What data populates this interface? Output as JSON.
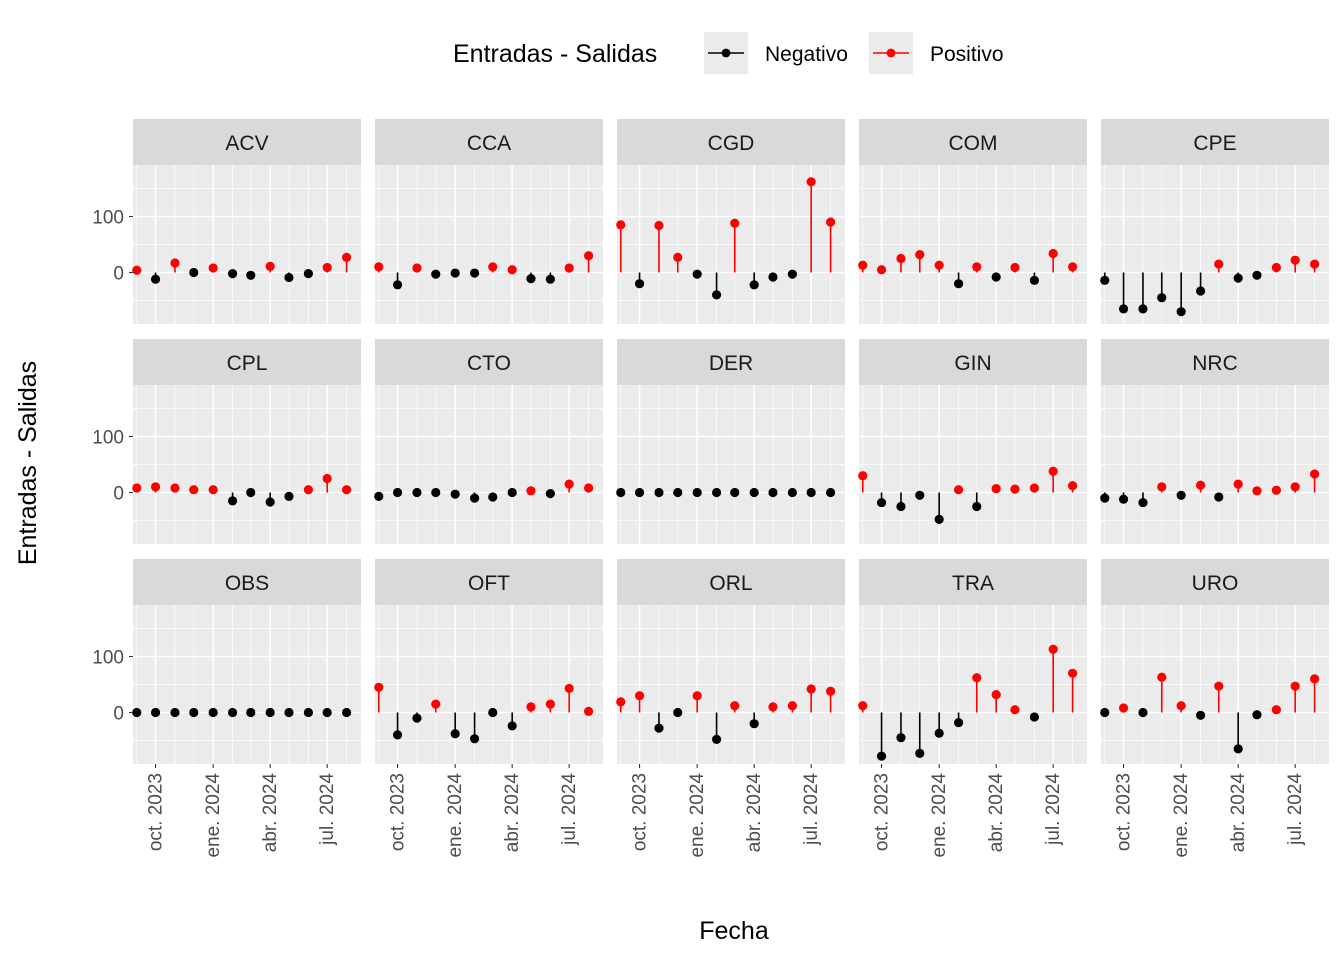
{
  "chart_data": {
    "type": "lollipop",
    "xlabel": "Fecha",
    "ylabel": "Entradas - Salidas",
    "legend": {
      "title": "Entradas - Salidas",
      "position": "top",
      "entries": [
        {
          "label": "Negativo",
          "color": "#000000"
        },
        {
          "label": "Positivo",
          "color": "#ff0000"
        }
      ]
    },
    "colors": {
      "negative": "#000000",
      "positive": "#ff0000",
      "panel_bg": "#ebebeb",
      "strip_bg": "#d9d9d9",
      "grid": "#ffffff"
    },
    "grid": true,
    "ylim": [
      -92,
      192
    ],
    "y_ticks": [
      0,
      100
    ],
    "x_dates": [
      "2023-09-01",
      "2023-10-01",
      "2023-11-01",
      "2023-12-01",
      "2024-01-01",
      "2024-02-01",
      "2024-03-01",
      "2024-04-01",
      "2024-05-01",
      "2024-06-01",
      "2024-07-01",
      "2024-08-01"
    ],
    "x_ticks": [
      {
        "date": "2023-10-01",
        "label": "oct. 2023"
      },
      {
        "date": "2024-01-01",
        "label": "ene. 2024"
      },
      {
        "date": "2024-04-01",
        "label": "abr. 2024"
      },
      {
        "date": "2024-07-01",
        "label": "jul. 2024"
      }
    ],
    "panels": [
      {
        "name": "ACV",
        "values": [
          4,
          -12,
          17,
          0,
          8,
          -2,
          -5,
          11,
          -9,
          -2,
          9,
          27
        ]
      },
      {
        "name": "CCA",
        "values": [
          10,
          -22,
          8,
          -3,
          -1,
          -1,
          10,
          5,
          -11,
          -12,
          8,
          30
        ]
      },
      {
        "name": "CGD",
        "values": [
          85,
          -20,
          84,
          27,
          -3,
          -40,
          88,
          -22,
          -8,
          -3,
          162,
          90
        ]
      },
      {
        "name": "COM",
        "values": [
          13,
          5,
          25,
          32,
          13,
          -20,
          10,
          -8,
          9,
          -14,
          34,
          10
        ]
      },
      {
        "name": "CPE",
        "values": [
          -14,
          -65,
          -65,
          -45,
          -70,
          -33,
          15,
          -10,
          -5,
          9,
          22,
          15
        ]
      },
      {
        "name": "CPL",
        "values": [
          8,
          10,
          8,
          5,
          5,
          -15,
          0,
          -17,
          -7,
          5,
          25,
          5
        ]
      },
      {
        "name": "CTO",
        "values": [
          -7,
          0,
          0,
          0,
          -3,
          -10,
          -8,
          0,
          3,
          -2,
          15,
          8
        ]
      },
      {
        "name": "DER",
        "values": [
          0,
          0,
          0,
          0,
          0,
          0,
          0,
          0,
          0,
          0,
          0,
          0
        ]
      },
      {
        "name": "GIN",
        "values": [
          30,
          -18,
          -25,
          -5,
          -48,
          5,
          -25,
          7,
          6,
          8,
          38,
          12
        ]
      },
      {
        "name": "NRC",
        "values": [
          -10,
          -12,
          -18,
          10,
          -5,
          13,
          -8,
          15,
          3,
          4,
          10,
          33
        ]
      },
      {
        "name": "OBS",
        "values": [
          0,
          0,
          0,
          0,
          0,
          0,
          0,
          0,
          0,
          0,
          0,
          0
        ]
      },
      {
        "name": "OFT",
        "values": [
          45,
          -40,
          -10,
          15,
          -38,
          -47,
          0,
          -24,
          10,
          15,
          43,
          2
        ]
      },
      {
        "name": "ORL",
        "values": [
          19,
          30,
          -28,
          0,
          30,
          -48,
          12,
          -20,
          10,
          12,
          42,
          38
        ]
      },
      {
        "name": "TRA",
        "values": [
          12,
          -78,
          -45,
          -73,
          -37,
          -18,
          62,
          32,
          5,
          -8,
          113,
          70
        ]
      },
      {
        "name": "URO",
        "values": [
          0,
          8,
          0,
          63,
          12,
          -5,
          47,
          -65,
          -4,
          5,
          47,
          60
        ]
      }
    ]
  }
}
